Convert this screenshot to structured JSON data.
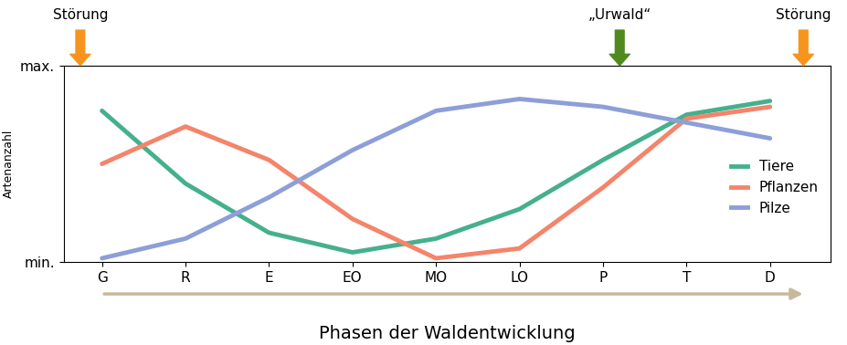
{
  "chart_data": {
    "type": "line",
    "y_label": "Artenanzahl",
    "x_label": "Phasen der Waldentwicklung",
    "categories": [
      "G",
      "R",
      "E",
      "EO",
      "MO",
      "LO",
      "P",
      "T",
      "D"
    ],
    "series": [
      {
        "name": "Tiere",
        "color": "#45b08c",
        "values": [
          7.7,
          4.0,
          1.5,
          0.5,
          1.2,
          2.7,
          5.2,
          7.5,
          8.2
        ]
      },
      {
        "name": "Pflanzen",
        "color": "#f4846a",
        "values": [
          5.0,
          6.9,
          5.2,
          2.2,
          0.2,
          0.7,
          3.8,
          7.3,
          7.9
        ]
      },
      {
        "name": "Pilze",
        "color": "#8d9fd8",
        "values": [
          0.2,
          1.2,
          3.3,
          5.7,
          7.7,
          8.3,
          7.9,
          7.1,
          6.3
        ]
      }
    ],
    "ylim": [
      0,
      10
    ],
    "yticks": [
      {
        "value": 0,
        "label": "min."
      },
      {
        "value": 10,
        "label": "max."
      }
    ],
    "grid": false,
    "legend": "center right",
    "annotations": [
      {
        "text": "Störung",
        "color": "#f7941d"
      },
      {
        "text": "„Urwald“",
        "color": "#4e8a1e"
      },
      {
        "text": "Störung",
        "color": "#f7941d"
      }
    ]
  }
}
